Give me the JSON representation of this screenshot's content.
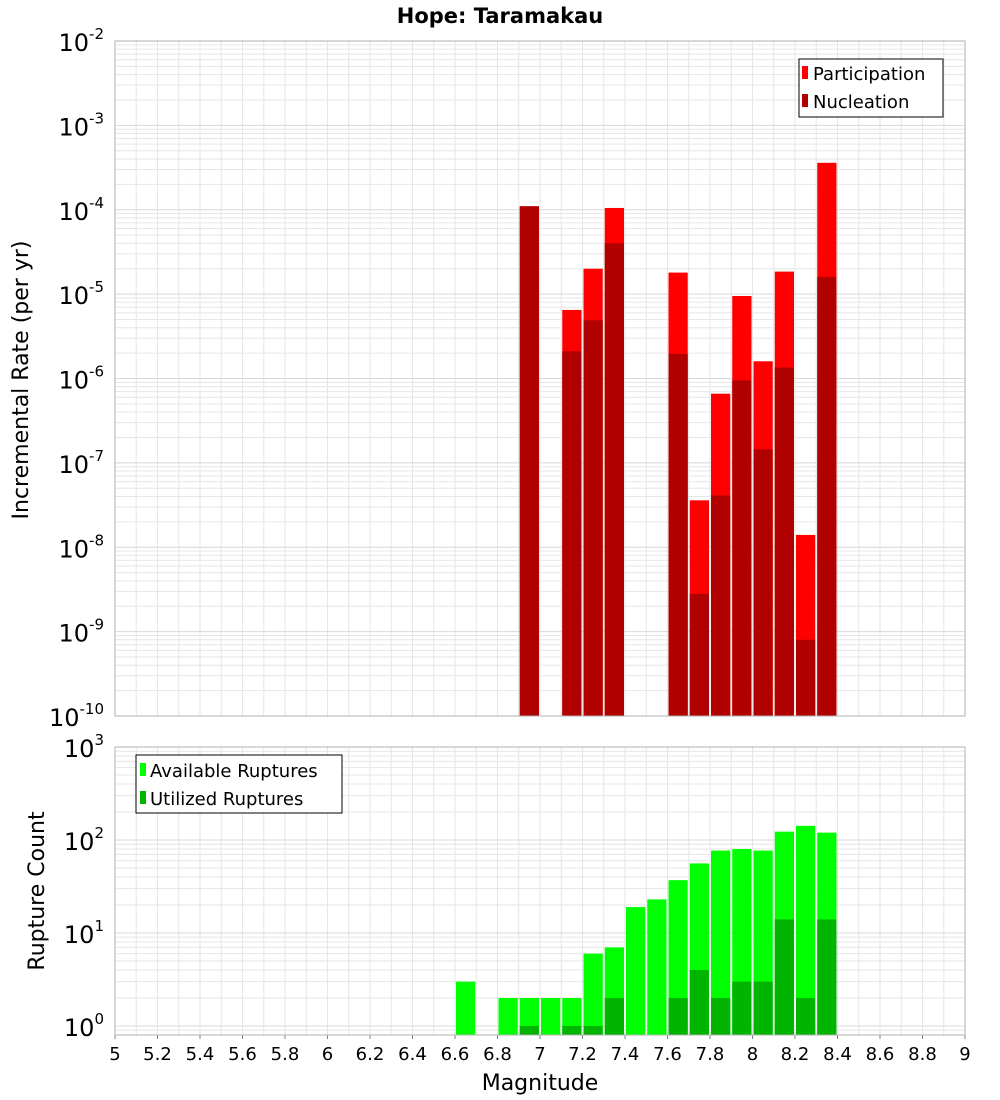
{
  "title": "Hope: Taramakau",
  "colors": {
    "participation": "#ff0000",
    "nucleation": "#b00000",
    "available": "#00ff00",
    "utilized": "#00b400",
    "grid": "#e6e6e6",
    "frame": "#b0b0b0"
  },
  "chart_data": [
    {
      "type": "bar",
      "panel": "top",
      "ylabel": "Incremental Rate (per yr)",
      "yscale": "log",
      "ylim": [
        1e-10,
        0.01
      ],
      "xlim": [
        5,
        9
      ],
      "y_tick_exponents": [
        "-10",
        "-9",
        "-8",
        "-7",
        "-6",
        "-5",
        "-4",
        "-3",
        "-2"
      ],
      "legend_position": "top-right",
      "x": [
        6.95,
        7.15,
        7.25,
        7.35,
        7.65,
        7.75,
        7.85,
        7.95,
        8.05,
        8.15,
        8.25,
        8.35
      ],
      "series": [
        {
          "name": "Participation",
          "values": [
            0.00011,
            6.5e-06,
            2e-05,
            0.000105,
            1.8e-05,
            3.6e-08,
            6.6e-07,
            9.5e-06,
            1.6e-06,
            1.85e-05,
            1.4e-08,
            0.00036
          ]
        },
        {
          "name": "Nucleation",
          "values": [
            0.00011,
            2.1e-06,
            4.9e-06,
            4e-05,
            1.95e-06,
            2.8e-09,
            4.1e-08,
            9.5e-07,
            1.45e-07,
            1.35e-06,
            8e-10,
            1.6e-05
          ]
        }
      ]
    },
    {
      "type": "bar",
      "panel": "bottom",
      "ylabel": "Rupture Count",
      "xlabel": "Magnitude",
      "yscale": "log",
      "ylim": [
        0.8,
        1000
      ],
      "xlim": [
        5,
        9
      ],
      "y_tick_exponents": [
        "0",
        "1",
        "2",
        "3"
      ],
      "x_tick_labels": [
        "5",
        "5.2",
        "5.4",
        "5.6",
        "5.8",
        "6",
        "6.2",
        "6.4",
        "6.6",
        "6.8",
        "7",
        "7.2",
        "7.4",
        "7.6",
        "7.8",
        "8",
        "8.2",
        "8.4",
        "8.6",
        "8.8",
        "9"
      ],
      "legend_position": "top-left",
      "x": [
        6.65,
        6.85,
        6.95,
        7.05,
        7.15,
        7.25,
        7.35,
        7.45,
        7.55,
        7.65,
        7.75,
        7.85,
        7.95,
        8.05,
        8.15,
        8.25,
        8.35
      ],
      "series": [
        {
          "name": "Available Ruptures",
          "values": [
            3,
            2,
            2,
            2,
            2,
            6,
            7,
            19,
            23,
            37,
            56,
            77,
            80,
            77,
            123,
            142,
            120
          ]
        },
        {
          "name": "Utilized Ruptures",
          "values": [
            0,
            0,
            1,
            0,
            1,
            1,
            2,
            0,
            0,
            2,
            4,
            2,
            3,
            3,
            14,
            2,
            14
          ]
        }
      ]
    }
  ]
}
